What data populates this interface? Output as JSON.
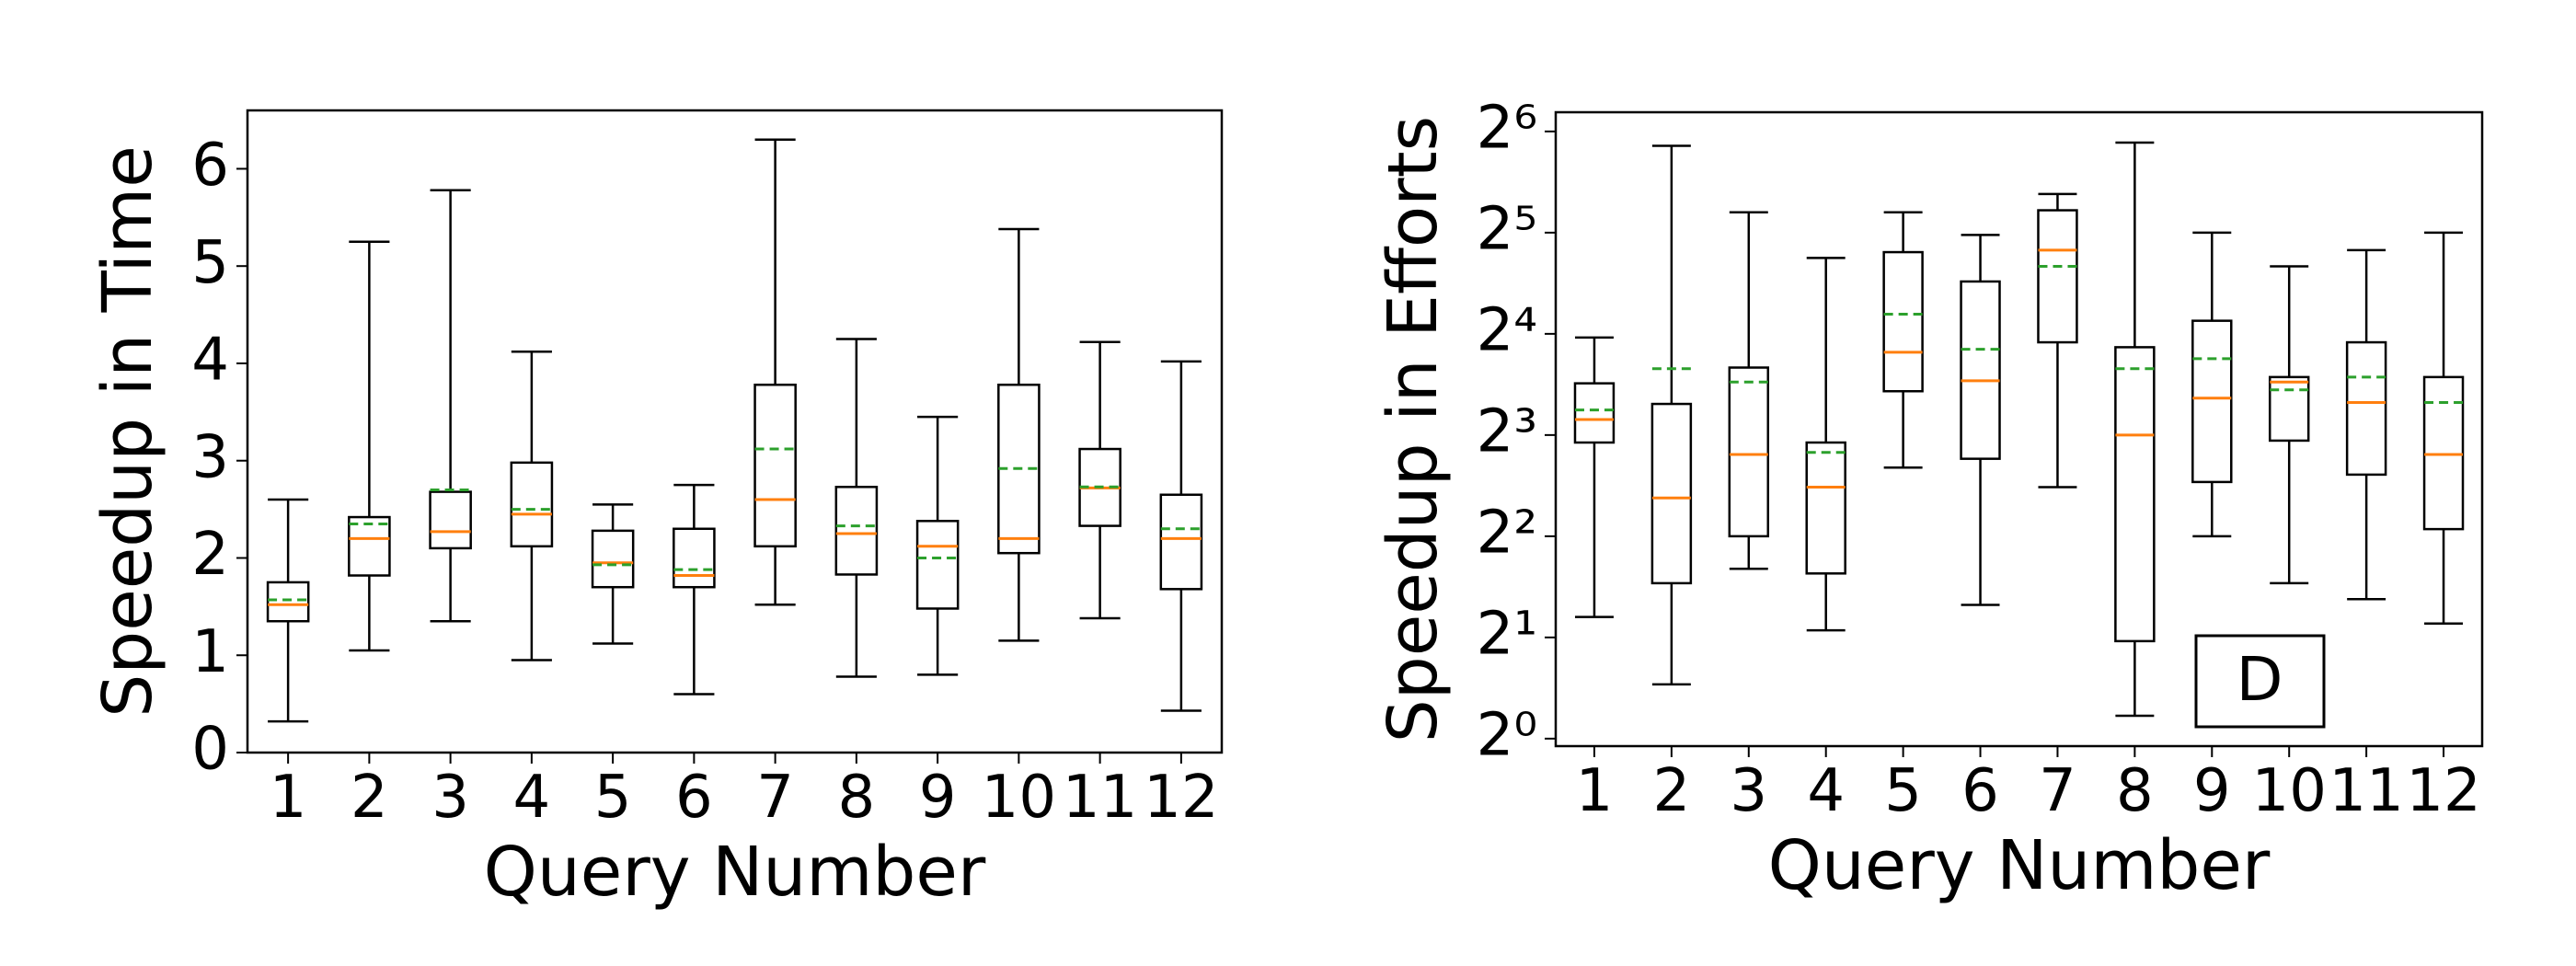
{
  "chart_data": [
    {
      "type": "box",
      "xlabel": "Query Number",
      "ylabel": "Speedup in Time",
      "categories": [
        "1",
        "2",
        "3",
        "4",
        "5",
        "6",
        "7",
        "8",
        "9",
        "10",
        "11",
        "12"
      ],
      "whislo": [
        0.32,
        1.05,
        1.35,
        0.95,
        1.12,
        0.6,
        1.52,
        0.78,
        0.8,
        1.15,
        1.38,
        0.43
      ],
      "q1": [
        1.35,
        1.82,
        2.1,
        2.12,
        1.7,
        1.7,
        2.12,
        1.83,
        1.48,
        2.05,
        2.33,
        1.68
      ],
      "med": [
        1.52,
        2.2,
        2.27,
        2.45,
        1.95,
        1.82,
        2.6,
        2.25,
        2.12,
        2.2,
        2.72,
        2.2
      ],
      "q3": [
        1.75,
        2.42,
        2.68,
        2.98,
        2.28,
        2.3,
        3.78,
        2.73,
        2.38,
        3.78,
        3.12,
        2.65
      ],
      "whishi": [
        2.6,
        5.25,
        5.78,
        4.12,
        2.55,
        2.75,
        6.3,
        4.25,
        3.45,
        5.38,
        4.22,
        4.02
      ],
      "mean": [
        1.57,
        2.35,
        2.7,
        2.5,
        1.93,
        1.88,
        3.12,
        2.33,
        2.0,
        2.92,
        2.73,
        2.3
      ],
      "box_color": "#000000",
      "median_color": "#ff7f0e",
      "mean_color": "#2ca02c",
      "yscale": "linear",
      "ylim": [
        0,
        6.6
      ],
      "yticks": [
        0,
        1,
        2,
        3,
        4,
        5,
        6
      ]
    },
    {
      "type": "box",
      "xlabel": "Query Number",
      "ylabel": "Speedup in Efforts",
      "categories": [
        "1",
        "2",
        "3",
        "4",
        "5",
        "6",
        "7",
        "8",
        "9",
        "10",
        "11",
        "12"
      ],
      "whislo": [
        2.3,
        1.45,
        3.2,
        2.1,
        6.4,
        2.5,
        5.6,
        1.17,
        4.0,
        2.9,
        2.6,
        2.2
      ],
      "q1": [
        7.6,
        2.9,
        4.0,
        3.1,
        10.8,
        6.8,
        15.1,
        1.95,
        5.8,
        7.7,
        6.1,
        4.2
      ],
      "med": [
        8.9,
        5.2,
        7.0,
        5.6,
        14.1,
        11.6,
        28.4,
        8.0,
        10.3,
        11.5,
        10.0,
        7.0
      ],
      "q3": [
        11.4,
        9.9,
        12.7,
        7.6,
        28,
        22.9,
        37.3,
        14.6,
        17.5,
        11.9,
        15.1,
        11.9
      ],
      "whishi": [
        15.6,
        58,
        36.8,
        26.9,
        36.8,
        31.5,
        41.7,
        59.3,
        32,
        25.4,
        28.4,
        32
      ],
      "mean": [
        9.5,
        12.6,
        11.5,
        7.1,
        18.3,
        14.4,
        25.4,
        12.6,
        13.5,
        10.9,
        11.9,
        10.0
      ],
      "box_color": "#000000",
      "median_color": "#ff7f0e",
      "mean_color": "#2ca02c",
      "yscale": "log",
      "ylim": [
        0.95,
        73
      ],
      "yticks": [
        {
          "value": 1,
          "label": "2⁰"
        },
        {
          "value": 2,
          "label": "2¹"
        },
        {
          "value": 4,
          "label": "2²"
        },
        {
          "value": 8,
          "label": "2³"
        },
        {
          "value": 16,
          "label": "2⁴"
        },
        {
          "value": 32,
          "label": "2⁵"
        },
        {
          "value": 64,
          "label": "2⁶"
        }
      ],
      "annotation": "D"
    }
  ]
}
